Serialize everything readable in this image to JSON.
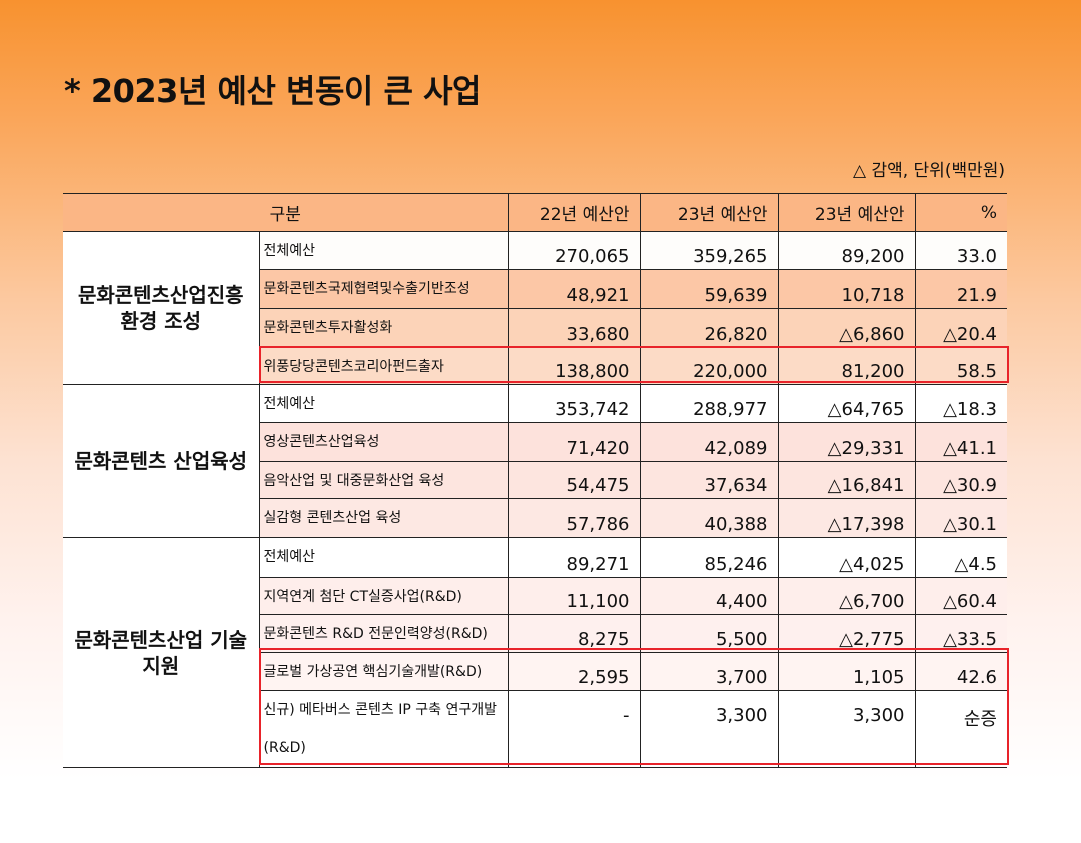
{
  "title": "* 2023년 예산 변동이 큰 사업",
  "unit_note": "△ 감액, 단위(백만원)",
  "headers": {
    "category": "구분",
    "budget_22": "22년 예산안",
    "budget_23": "23년 예산안",
    "change": "23년 예산안",
    "percent": "%"
  },
  "groups": [
    {
      "name": "문화콘텐츠산업진흥 환경 조성",
      "rows": [
        {
          "name": "전체예산",
          "v22": "270,065",
          "v23": "359,265",
          "diff": "89,200",
          "pct": "33.0"
        },
        {
          "name": "문화콘텐츠국제협력및수출기반조성",
          "v22": "48,921",
          "v23": "59,639",
          "diff": "10,718",
          "pct": "21.9"
        },
        {
          "name": "문화콘텐츠투자활성화",
          "v22": "33,680",
          "v23": "26,820",
          "diff": "△6,860",
          "pct": "△20.4"
        },
        {
          "name": "위풍당당콘텐츠코리아펀드출자",
          "v22": "138,800",
          "v23": "220,000",
          "diff": "81,200",
          "pct": "58.5"
        }
      ]
    },
    {
      "name": "문화콘텐츠 산업육성",
      "rows": [
        {
          "name": "전체예산",
          "v22": "353,742",
          "v23": "288,977",
          "diff": "△64,765",
          "pct": "△18.3"
        },
        {
          "name": "영상콘텐츠산업육성",
          "v22": "71,420",
          "v23": "42,089",
          "diff": "△29,331",
          "pct": "△41.1"
        },
        {
          "name": "음악산업 및 대중문화산업 육성",
          "v22": "54,475",
          "v23": "37,634",
          "diff": "△16,841",
          "pct": "△30.9"
        },
        {
          "name": "실감형 콘텐츠산업 육성",
          "v22": "57,786",
          "v23": "40,388",
          "diff": "△17,398",
          "pct": "△30.1"
        }
      ]
    },
    {
      "name": "문화콘텐츠산업 기술지원",
      "rows": [
        {
          "name": "전체예산",
          "v22": "89,271",
          "v23": "85,246",
          "diff": "△4,025",
          "pct": "△4.5"
        },
        {
          "name": "지역연계 첨단 CT실증사업(R&D)",
          "v22": "11,100",
          "v23": "4,400",
          "diff": "△6,700",
          "pct": "△60.4"
        },
        {
          "name": "문화콘텐츠 R&D 전문인력양성(R&D)",
          "v22": "8,275",
          "v23": "5,500",
          "diff": "△2,775",
          "pct": "△33.5"
        },
        {
          "name": "글로벌 가상공연 핵심기술개발(R&D)",
          "v22": "2,595",
          "v23": "3,700",
          "diff": "1,105",
          "pct": "42.6"
        },
        {
          "name": "신규) 메타버스 콘텐츠 IP 구축 연구개발(R&D)",
          "v22": "-",
          "v23": "3,300",
          "diff": "3,300",
          "pct": "순증"
        }
      ]
    }
  ],
  "colors": {
    "highlight_border": "#e8232a",
    "header_bg": "#fbb685",
    "gradient_top": "#f8922f"
  }
}
